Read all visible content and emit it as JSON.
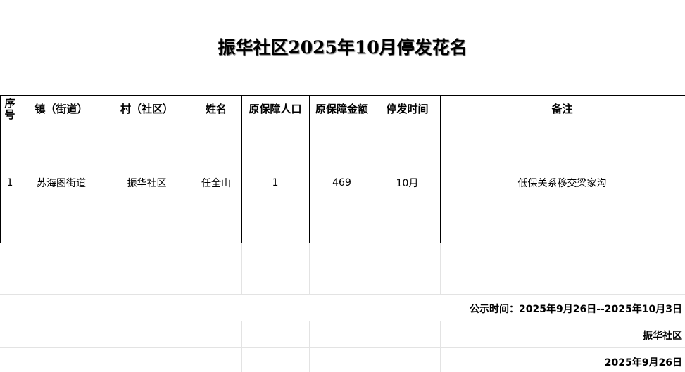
{
  "title": "振华社区2025年10月停发花名",
  "table": {
    "headers": [
      "序号",
      "镇（街道）",
      "村（社区）",
      "姓名",
      "原保障人口",
      "原保障金额",
      "停发时间",
      "备注"
    ],
    "rows": [
      [
        "1",
        "苏海图街道",
        "振华社区",
        "任全山",
        "1",
        "469",
        "10月",
        "低保关系移交梁家沟"
      ]
    ]
  },
  "footer": {
    "notice_period": "公示时间：2025年9月26日--2025年10月3日",
    "organization": "振华社区",
    "date": "2025年9月26日"
  }
}
